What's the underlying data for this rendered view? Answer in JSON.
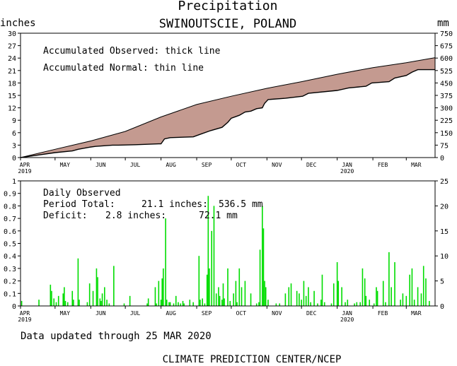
{
  "header": {
    "title": "Precipitation",
    "location": "SWINOUTSCIE, POLAND"
  },
  "footer": {
    "updated": "Data updated through 25 MAR 2020",
    "credit": "CLIMATE PREDICTION CENTER/NCEP"
  },
  "colors": {
    "fill": "#c49a90",
    "bars": "#00dd00",
    "axes": "#000000"
  },
  "chart_data": [
    {
      "type": "area",
      "ylabel": "inches",
      "y2label": "mm",
      "ylim": [
        0,
        30
      ],
      "y2lim": [
        0,
        750
      ],
      "yticks": [
        "0",
        "3",
        "6",
        "9",
        "12",
        "15",
        "18",
        "21",
        "24",
        "27",
        "30"
      ],
      "y2ticks": [
        "0",
        "75",
        "150",
        "225",
        "300",
        "375",
        "450",
        "525",
        "600",
        "675",
        "750"
      ],
      "xlim": [
        0,
        360
      ],
      "month_ticks": [
        {
          "label": "APR",
          "day": 0,
          "year": "2019"
        },
        {
          "label": "MAY",
          "day": 30
        },
        {
          "label": "JUN",
          "day": 61
        },
        {
          "label": "JUL",
          "day": 91
        },
        {
          "label": "AUG",
          "day": 122
        },
        {
          "label": "SEP",
          "day": 153
        },
        {
          "label": "OCT",
          "day": 183
        },
        {
          "label": "NOV",
          "day": 214
        },
        {
          "label": "DEC",
          "day": 244
        },
        {
          "label": "JAN",
          "day": 275,
          "year": "2020"
        },
        {
          "label": "FEB",
          "day": 306
        },
        {
          "label": "MAR",
          "day": 335
        }
      ],
      "annotations": [
        "Accumulated Observed: thick line",
        "Accumulated Normal: thin line"
      ],
      "series": [
        {
          "name": "Accumulated Normal",
          "x": [
            0,
            30,
            61,
            91,
            122,
            153,
            183,
            214,
            244,
            275,
            306,
            335,
            360
          ],
          "y": [
            0,
            2.0,
            4.0,
            6.3,
            9.8,
            12.8,
            14.8,
            16.7,
            18.3,
            20.1,
            21.7,
            22.9,
            24.1
          ]
        },
        {
          "name": "Accumulated Observed",
          "x": [
            0,
            5,
            30,
            45,
            50,
            60,
            65,
            80,
            85,
            100,
            110,
            120,
            122,
            125,
            130,
            150,
            155,
            165,
            175,
            180,
            183,
            190,
            195,
            200,
            205,
            210,
            212,
            215,
            230,
            245,
            250,
            275,
            285,
            300,
            305,
            320,
            325,
            335,
            340,
            345,
            360
          ],
          "y": [
            0,
            0.2,
            1.2,
            1.6,
            2.0,
            2.5,
            2.7,
            3.0,
            3.0,
            3.1,
            3.2,
            3.3,
            3.3,
            4.5,
            4.8,
            5.0,
            5.5,
            6.5,
            7.3,
            8.5,
            9.5,
            10.2,
            11.0,
            11.2,
            11.8,
            12.0,
            13.1,
            14.0,
            14.3,
            14.8,
            15.5,
            16.2,
            16.8,
            17.2,
            18.0,
            18.3,
            19.2,
            19.8,
            20.6,
            21.2,
            21.2
          ]
        }
      ]
    },
    {
      "type": "bar",
      "ylabel": "",
      "ylim": [
        0,
        1
      ],
      "y2lim": [
        0,
        25
      ],
      "yticks": [
        "0",
        "0.1",
        "0.2",
        "0.3",
        "0.4",
        "0.5",
        "0.6",
        "0.7",
        "0.8",
        "0.9",
        "1"
      ],
      "y2ticks": [
        "0",
        "5",
        "10",
        "15",
        "20",
        "25"
      ],
      "xlim": [
        0,
        360
      ],
      "annotations": {
        "title": "Daily Observed",
        "period_label": "Period Total:",
        "period_inches": "21.1 inches:",
        "period_mm": "536.5 mm",
        "deficit_label": "Deficit:",
        "deficit_inches": "2.8 inches:",
        "deficit_mm": "72.1 mm"
      },
      "days": [
        1,
        16,
        26,
        27,
        29,
        31,
        33,
        37,
        38,
        39,
        41,
        45,
        46,
        50,
        51,
        58,
        60,
        63,
        66,
        67,
        69,
        70,
        71,
        73,
        75,
        77,
        81,
        90,
        95,
        110,
        111,
        117,
        118,
        120,
        122,
        123,
        124,
        126,
        127,
        129,
        130,
        133,
        135,
        137,
        139,
        141,
        142,
        147,
        150,
        155,
        156,
        158,
        160,
        162,
        163,
        164,
        166,
        168,
        170,
        172,
        173,
        175,
        176,
        177,
        180,
        182,
        185,
        187,
        188,
        190,
        192,
        195,
        200,
        205,
        207,
        208,
        210,
        211,
        212,
        213,
        215,
        222,
        225,
        230,
        233,
        235,
        240,
        242,
        244,
        246,
        248,
        250,
        252,
        255,
        258,
        261,
        262,
        264,
        270,
        272,
        275,
        276,
        279,
        282,
        284,
        290,
        292,
        295,
        297,
        299,
        300,
        303,
        307,
        309,
        310,
        315,
        317,
        320,
        322,
        325,
        330,
        332,
        335,
        338,
        340,
        342,
        345,
        348,
        350,
        352,
        355
      ],
      "values": [
        0.04,
        0.05,
        0.17,
        0.12,
        0.06,
        0.03,
        0.08,
        0.1,
        0.15,
        0.04,
        0.03,
        0.12,
        0.05,
        0.38,
        0.05,
        0.03,
        0.18,
        0.12,
        0.3,
        0.23,
        0.06,
        0.04,
        0.1,
        0.15,
        0.05,
        0.02,
        0.32,
        0.02,
        0.08,
        0.02,
        0.06,
        0.15,
        0.02,
        0.2,
        0.05,
        0.22,
        0.3,
        0.7,
        0.05,
        0.03,
        0.03,
        0.02,
        0.08,
        0.03,
        0.02,
        0.04,
        0.02,
        0.05,
        0.03,
        0.4,
        0.05,
        0.06,
        0.02,
        0.25,
        0.88,
        0.3,
        0.6,
        0.8,
        0.1,
        0.15,
        0.08,
        0.05,
        0.18,
        0.06,
        0.3,
        0.04,
        0.1,
        0.2,
        0.03,
        0.3,
        0.15,
        0.2,
        0.1,
        0.02,
        0.03,
        0.45,
        0.8,
        0.62,
        0.2,
        0.15,
        0.05,
        0.02,
        0.02,
        0.1,
        0.15,
        0.18,
        0.12,
        0.1,
        0.05,
        0.2,
        0.08,
        0.15,
        0.03,
        0.12,
        0.02,
        0.05,
        0.25,
        0.03,
        0.02,
        0.18,
        0.35,
        0.2,
        0.15,
        0.03,
        0.05,
        0.02,
        0.03,
        0.03,
        0.3,
        0.22,
        0.08,
        0.05,
        0.02,
        0.15,
        0.12,
        0.2,
        0.03,
        0.43,
        0.15,
        0.35,
        0.05,
        0.1,
        0.08,
        0.25,
        0.3,
        0.05,
        0.15,
        0.1,
        0.32,
        0.22,
        0.04
      ]
    }
  ]
}
